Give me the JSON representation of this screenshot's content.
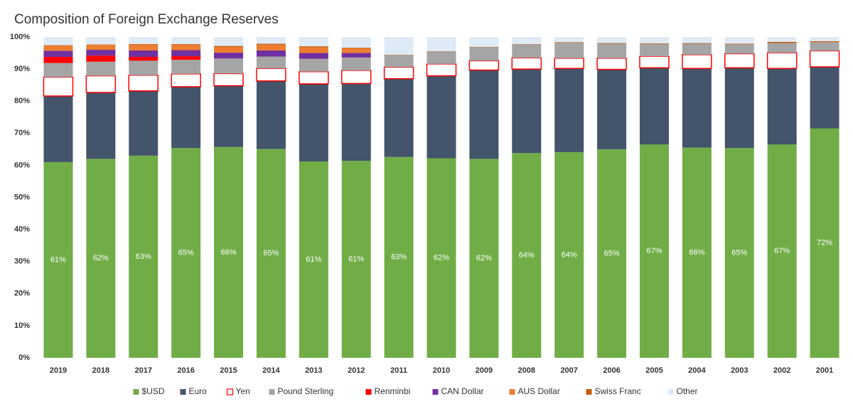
{
  "chart_data": {
    "type": "stacked_bar",
    "title": "Composition of Foreign Exchange Reserves",
    "categories": [
      "2019",
      "2018",
      "2017",
      "2016",
      "2015",
      "2014",
      "2013",
      "2012",
      "2011",
      "2010",
      "2009",
      "2008",
      "2007",
      "2006",
      "2005",
      "2004",
      "2003",
      "2002",
      "2001"
    ],
    "ylim": [
      0,
      100
    ],
    "yticks": [
      {
        "value": 0,
        "label": "0%"
      },
      {
        "value": 10,
        "label": "10%"
      },
      {
        "value": 20,
        "label": "20%"
      },
      {
        "value": 30,
        "label": "30%"
      },
      {
        "value": 40,
        "label": "40%"
      },
      {
        "value": 50,
        "label": "50%"
      },
      {
        "value": 60,
        "label": "60%"
      },
      {
        "value": 70,
        "label": "70%"
      },
      {
        "value": 80,
        "label": "80%"
      },
      {
        "value": 90,
        "label": "90%"
      },
      {
        "value": 100,
        "label": "100%"
      }
    ],
    "grid": false,
    "legend": "bottom",
    "series": [
      {
        "name": "$USD",
        "color": "#70ad47",
        "values": [
          61,
          62,
          63,
          65.4,
          65.7,
          65.1,
          61.2,
          61.4,
          62.6,
          62.2,
          62.0,
          63.8,
          64.1,
          65.0,
          66.5,
          65.5,
          65.4,
          66.5,
          71.5
        ],
        "value_labels": [
          "61%",
          "62%",
          "63%",
          "65%",
          "66%",
          "65%",
          "61%",
          "61%",
          "63%",
          "62%",
          "62%",
          "64%",
          "64%",
          "65%",
          "67%",
          "66%",
          "65%",
          "67%",
          "72%"
        ]
      },
      {
        "name": "Euro",
        "color": "#44546a",
        "values": [
          20.6,
          20.7,
          20.2,
          19.1,
          19.1,
          21.2,
          24.2,
          24.1,
          24.4,
          25.7,
          27.7,
          26.2,
          26.1,
          24.9,
          23.9,
          24.7,
          25.0,
          23.7,
          19.2
        ]
      },
      {
        "name": "Yen",
        "color": "#ffffff",
        "border": "#ff0000",
        "values": [
          5.9,
          5.2,
          4.9,
          4.0,
          3.8,
          3.9,
          3.8,
          4.1,
          3.6,
          3.7,
          2.9,
          3.5,
          3.2,
          3.5,
          3.6,
          4.3,
          4.4,
          4.9,
          5.0
        ]
      },
      {
        "name": "Pound Sterling",
        "color": "#a5a5a5",
        "values": [
          4.4,
          4.4,
          4.5,
          4.4,
          4.7,
          3.7,
          4.0,
          4.0,
          3.8,
          3.9,
          4.2,
          4.2,
          4.8,
          4.5,
          3.8,
          3.4,
          2.9,
          3.0,
          2.7
        ]
      },
      {
        "name": "Renminbi",
        "color": "#ff0000",
        "values": [
          1.9,
          1.9,
          1.2,
          1.1,
          null,
          null,
          null,
          null,
          null,
          null,
          null,
          null,
          null,
          null,
          null,
          null,
          null,
          null,
          null
        ]
      },
      {
        "name": "CAN Dollar",
        "color": "#7030a0",
        "values": [
          1.9,
          1.8,
          2.0,
          1.9,
          1.8,
          1.9,
          1.8,
          1.4,
          null,
          null,
          null,
          null,
          null,
          null,
          null,
          null,
          null,
          null,
          null
        ]
      },
      {
        "name": "AUS Dollar",
        "color": "#ed7d31",
        "values": [
          1.7,
          1.6,
          1.8,
          1.7,
          1.8,
          1.8,
          1.8,
          1.5,
          null,
          null,
          null,
          null,
          null,
          null,
          null,
          null,
          null,
          null,
          null
        ]
      },
      {
        "name": "Swiss Franc",
        "color": "#c55a11",
        "values": [
          0.1,
          0.1,
          0.2,
          0.2,
          0.3,
          0.3,
          0.3,
          0.2,
          0.1,
          0.1,
          0.1,
          0.1,
          0.2,
          0.2,
          0.2,
          0.2,
          0.2,
          0.4,
          0.3
        ]
      },
      {
        "name": "Other",
        "color": "#deebf7",
        "values": [
          2.5,
          2.3,
          2.2,
          2.2,
          2.8,
          2.1,
          2.9,
          3.3,
          5.5,
          4.4,
          3.1,
          2.2,
          1.6,
          1.9,
          2.0,
          1.9,
          2.1,
          1.5,
          1.3
        ]
      }
    ]
  }
}
